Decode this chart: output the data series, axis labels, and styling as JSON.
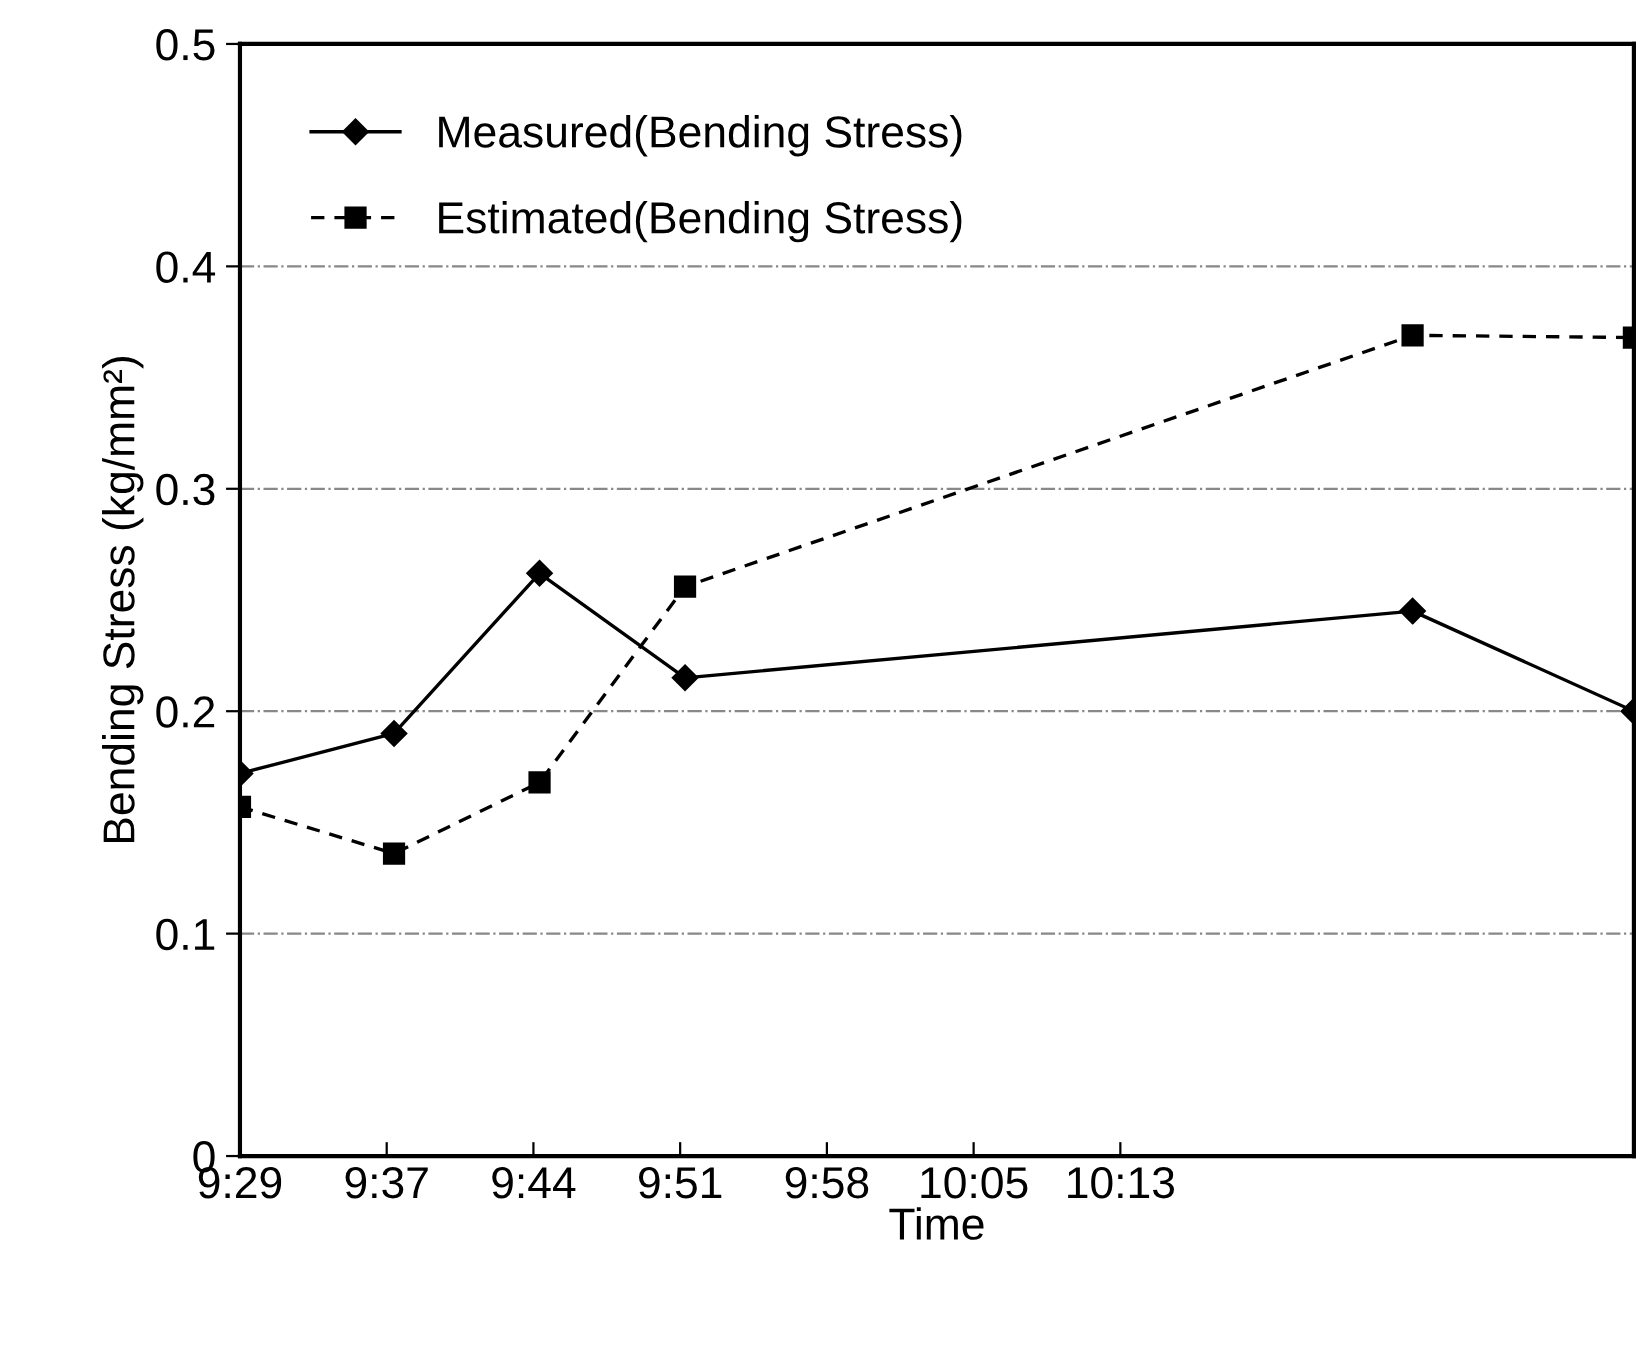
{
  "chart_data": {
    "type": "line",
    "xlabel": "Time",
    "ylabel": "Bending Stress (kg/mm²)",
    "xlim": [
      9.49,
      10.63
    ],
    "xticks": [
      {
        "value": 9.49,
        "label": "9:29"
      },
      {
        "value": 9.61,
        "label": "9:37"
      },
      {
        "value": 9.73,
        "label": "9:44"
      },
      {
        "value": 9.85,
        "label": "9:51"
      },
      {
        "value": 9.97,
        "label": "9:58"
      },
      {
        "value": 10.09,
        "label": "10:05"
      },
      {
        "value": 10.21,
        "label": "10:13"
      }
    ],
    "ylim": [
      0,
      0.5
    ],
    "yticks": [
      0,
      0.1,
      0.2,
      0.3,
      0.4,
      0.5
    ],
    "grid": "y",
    "legend": "top left",
    "x": [
      9.49,
      9.616,
      9.735,
      9.854,
      10.449,
      10.63
    ],
    "series": [
      {
        "name": "Measured(Bending Stress)",
        "color": "#000000",
        "marker": "diamond",
        "line_style": "solid",
        "values": [
          0.172,
          0.19,
          0.262,
          0.215,
          0.245,
          0.2
        ]
      },
      {
        "name": "Estimated(Bending Stress)",
        "color": "#000000",
        "marker": "square",
        "line_style": "dashed",
        "values": [
          0.157,
          0.136,
          0.168,
          0.256,
          0.369,
          0.368
        ]
      }
    ]
  }
}
